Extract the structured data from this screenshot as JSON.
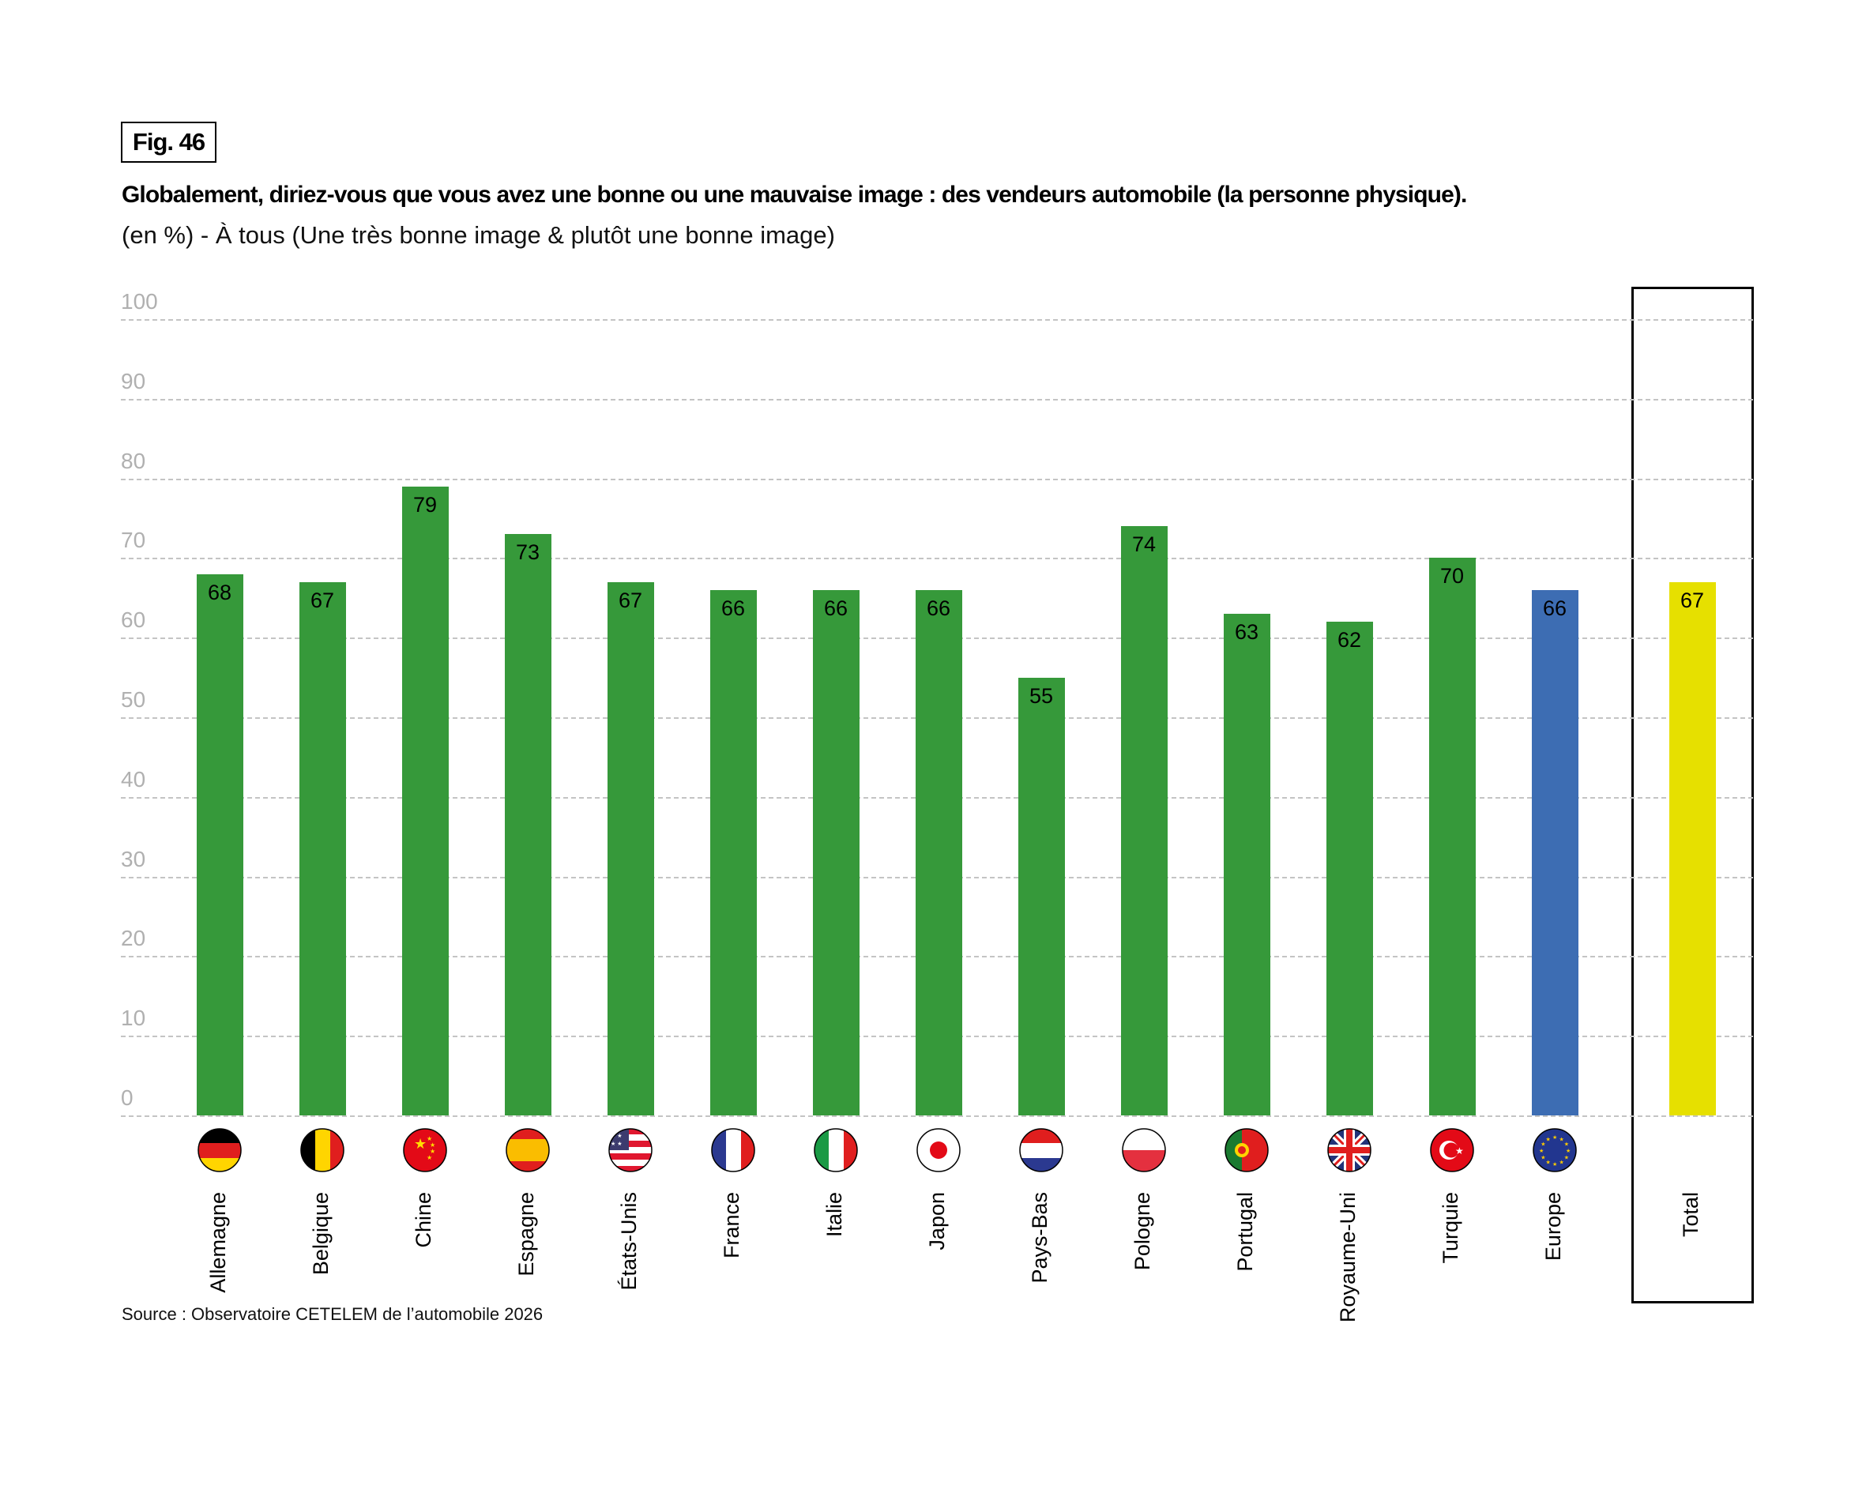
{
  "header": {
    "fig_label": "Fig. 46",
    "title": "Globalement, diriez-vous que vous avez une bonne ou une mauvaise image : des vendeurs automobile (la personne physique).",
    "subtitle": "(en %) - À tous (Une très bonne image & plutôt une bonne image)"
  },
  "source": "Source : Observatoire CETELEM de l’automobile 2026",
  "colors": {
    "country": "#36993a",
    "europe": "#3d6db3",
    "total": "#e6e000",
    "grid": "#c4c4c4",
    "tick": "#b0b0b0"
  },
  "chart_data": {
    "type": "bar",
    "title": "Globalement, diriez-vous que vous avez une bonne ou une mauvaise image : des vendeurs automobile (la personne physique).",
    "xlabel": "",
    "ylabel": "(en %)",
    "ylim": [
      0,
      100
    ],
    "yticks": [
      "0",
      "10",
      "20",
      "30",
      "40",
      "50",
      "60",
      "70",
      "80",
      "90",
      "100"
    ],
    "grid": true,
    "categories": [
      "Allemagne",
      "Belgique",
      "Chine",
      "Espagne",
      "États-Unis",
      "France",
      "Italie",
      "Japon",
      "Pays-Bas",
      "Pologne",
      "Portugal",
      "Royaume-Uni",
      "Turquie",
      "Europe",
      "Total"
    ],
    "values": [
      68,
      67,
      79,
      73,
      67,
      66,
      66,
      66,
      55,
      74,
      63,
      62,
      70,
      66,
      67
    ],
    "value_labels": [
      "68",
      "67",
      "79",
      "73",
      "67",
      "66",
      "66",
      "66",
      "55",
      "74",
      "63",
      "62",
      "70",
      "66",
      "67"
    ],
    "bar_kind": [
      "country",
      "country",
      "country",
      "country",
      "country",
      "country",
      "country",
      "country",
      "country",
      "country",
      "country",
      "country",
      "country",
      "europe",
      "total"
    ],
    "flag_icons": [
      "germany-flag-icon",
      "belgium-flag-icon",
      "china-flag-icon",
      "spain-flag-icon",
      "usa-flag-icon",
      "france-flag-icon",
      "italy-flag-icon",
      "japan-flag-icon",
      "netherlands-flag-icon",
      "poland-flag-icon",
      "portugal-flag-icon",
      "uk-flag-icon",
      "turkey-flag-icon",
      "eu-flag-icon",
      ""
    ]
  }
}
